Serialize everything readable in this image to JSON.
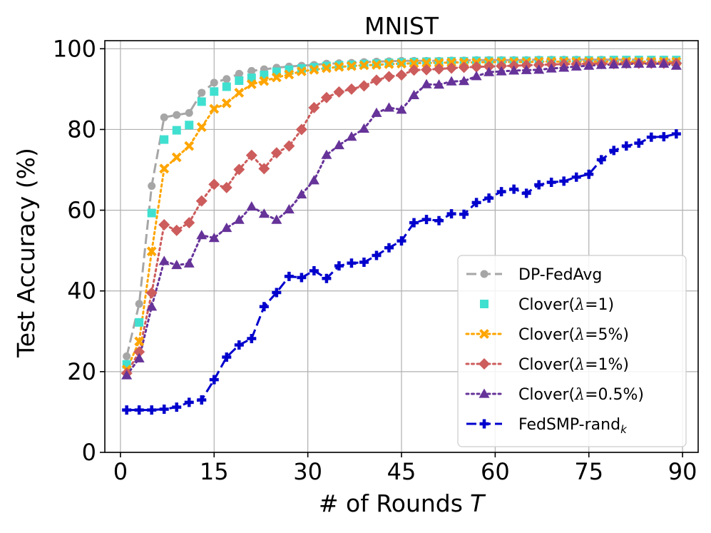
{
  "chart_data": {
    "type": "line",
    "title": "MNIST",
    "xlabel": "# of Rounds",
    "xlabel_var": "T",
    "ylabel": "Test Accuracy (%)",
    "xlim": [
      -2.5,
      92.5
    ],
    "ylim": [
      0,
      102
    ],
    "xticks": [
      0,
      15,
      30,
      45,
      60,
      75,
      90
    ],
    "yticks": [
      0,
      20,
      40,
      60,
      80,
      100
    ],
    "grid": true,
    "legend_position": "lower-right",
    "series": [
      {
        "name": "DP-FedAvg",
        "legend_prefix": "DP-FedAvg",
        "legend_sym": "",
        "legend_suffix": "",
        "legend_sub": "",
        "color": "#a6a6a6",
        "marker": "circle",
        "linestyle": "dashed",
        "draw_line": true,
        "x": [
          1,
          3,
          5,
          7,
          9,
          11,
          13,
          15,
          17,
          19,
          21,
          23,
          25,
          27,
          29,
          31,
          33,
          35,
          37,
          39,
          41,
          43,
          45,
          47,
          49,
          51,
          53,
          55,
          57,
          59,
          61,
          63,
          65,
          67,
          69,
          71,
          73,
          75,
          77,
          79,
          81,
          83,
          85,
          87,
          89
        ],
        "y": [
          23.8,
          36.8,
          66.0,
          83.0,
          83.6,
          84.1,
          89.1,
          91.6,
          92.5,
          93.8,
          94.5,
          94.9,
          95.3,
          95.6,
          95.8,
          96.0,
          96.3,
          96.4,
          96.5,
          96.7,
          96.8,
          96.9,
          97.0,
          97.0,
          97.0,
          97.0,
          97.1,
          97.1,
          97.2,
          97.2,
          97.2,
          97.2,
          97.2,
          97.3,
          97.3,
          97.3,
          97.3,
          97.3,
          97.3,
          97.3,
          97.3,
          97.3,
          97.3,
          97.3,
          97.3
        ]
      },
      {
        "name": "Clover(λ=1)",
        "legend_prefix": "Clover(",
        "legend_sym": "λ",
        "legend_suffix": "=1)",
        "legend_sub": "",
        "color": "#40e0d0",
        "marker": "square",
        "linestyle": "none",
        "draw_line": false,
        "x": [
          1,
          3,
          5,
          7,
          9,
          11,
          13,
          15,
          17,
          19,
          21,
          23,
          25,
          27,
          29,
          31,
          33,
          35,
          37,
          39,
          41,
          43,
          45,
          47,
          49,
          51,
          53,
          55,
          57,
          59,
          61,
          63,
          65,
          67,
          69,
          71,
          73,
          75,
          77,
          79,
          81,
          83,
          85,
          87,
          89
        ],
        "y": [
          21.8,
          32.2,
          59.3,
          77.5,
          79.8,
          81.1,
          86.9,
          89.4,
          90.6,
          92.1,
          92.8,
          93.5,
          94.3,
          94.8,
          95.1,
          95.4,
          95.7,
          95.9,
          96.0,
          96.2,
          96.3,
          96.5,
          96.6,
          96.7,
          96.8,
          96.8,
          96.9,
          96.9,
          97.0,
          97.0,
          97.0,
          97.0,
          97.0,
          97.1,
          97.1,
          97.1,
          97.1,
          97.1,
          97.1,
          97.2,
          97.2,
          97.2,
          97.2,
          97.2,
          97.2
        ]
      },
      {
        "name": "Clover(λ=5%)",
        "legend_prefix": "Clover(",
        "legend_sym": "λ",
        "legend_suffix": "=5%)",
        "legend_sub": "",
        "color": "#ffa500",
        "marker": "x",
        "linestyle": "dotted",
        "draw_line": true,
        "x": [
          1,
          3,
          5,
          7,
          9,
          11,
          13,
          15,
          17,
          19,
          21,
          23,
          25,
          27,
          29,
          31,
          33,
          35,
          37,
          39,
          41,
          43,
          45,
          47,
          49,
          51,
          53,
          55,
          57,
          59,
          61,
          63,
          65,
          67,
          69,
          71,
          73,
          75,
          77,
          79,
          81,
          83,
          85,
          87,
          89
        ],
        "y": [
          20.5,
          27.5,
          49.8,
          70.3,
          73.1,
          75.9,
          80.6,
          85.1,
          86.5,
          89.1,
          91.2,
          92.0,
          92.9,
          93.6,
          94.4,
          94.8,
          95.2,
          95.5,
          95.7,
          95.9,
          96.0,
          96.2,
          96.3,
          96.4,
          96.5,
          96.5,
          96.6,
          96.6,
          96.6,
          96.7,
          96.7,
          96.7,
          96.7,
          96.8,
          96.8,
          96.8,
          96.8,
          96.8,
          96.8,
          96.8,
          96.8,
          96.8,
          96.8,
          96.8,
          96.8
        ]
      },
      {
        "name": "Clover(λ=1%)",
        "legend_prefix": "Clover(",
        "legend_sym": "λ",
        "legend_suffix": "=1%)",
        "legend_sub": "",
        "color": "#cd5c5c",
        "marker": "diamond",
        "linestyle": "dotted",
        "draw_line": true,
        "x": [
          1,
          3,
          5,
          7,
          9,
          11,
          13,
          15,
          17,
          19,
          21,
          23,
          25,
          27,
          29,
          31,
          33,
          35,
          37,
          39,
          41,
          43,
          45,
          47,
          49,
          51,
          53,
          55,
          57,
          59,
          61,
          63,
          65,
          67,
          69,
          71,
          73,
          75,
          77,
          79,
          81,
          83,
          85,
          87,
          89
        ],
        "y": [
          19.6,
          24.9,
          39.5,
          56.4,
          55.0,
          56.9,
          62.3,
          66.4,
          65.6,
          70.1,
          73.6,
          70.3,
          74.2,
          75.9,
          80.0,
          85.4,
          87.9,
          89.3,
          90.0,
          90.8,
          92.2,
          93.1,
          93.5,
          94.7,
          94.8,
          95.0,
          95.2,
          95.4,
          95.5,
          95.6,
          95.7,
          95.8,
          95.9,
          96.0,
          96.1,
          96.2,
          96.2,
          96.3,
          96.3,
          96.3,
          96.4,
          96.4,
          96.4,
          96.4,
          96.4
        ]
      },
      {
        "name": "Clover(λ=0.5%)",
        "legend_prefix": "Clover(",
        "legend_sym": "λ",
        "legend_suffix": "=0.5%)",
        "legend_sub": "",
        "color": "#663399",
        "marker": "triangle",
        "linestyle": "dotted",
        "draw_line": true,
        "x": [
          1,
          3,
          5,
          7,
          9,
          11,
          13,
          15,
          17,
          19,
          21,
          23,
          25,
          27,
          29,
          31,
          33,
          35,
          37,
          39,
          41,
          43,
          45,
          47,
          49,
          51,
          53,
          55,
          57,
          59,
          61,
          63,
          65,
          67,
          69,
          71,
          73,
          75,
          77,
          79,
          81,
          83,
          85,
          87,
          89
        ],
        "y": [
          19.1,
          23.3,
          36.1,
          47.4,
          46.4,
          46.8,
          53.8,
          53.1,
          55.6,
          57.6,
          60.9,
          59.1,
          57.6,
          60.2,
          63.9,
          67.4,
          73.7,
          76.1,
          78.2,
          80.2,
          84.1,
          85.4,
          84.9,
          88.5,
          91.2,
          91.1,
          91.9,
          92.0,
          93.2,
          94.2,
          94.4,
          94.6,
          94.7,
          94.8,
          95.1,
          95.3,
          95.6,
          95.8,
          96.0,
          96.1,
          96.2,
          96.3,
          96.3,
          96.3,
          95.8
        ]
      },
      {
        "name": "FedSMP-rand_k",
        "legend_prefix": "FedSMP-rand",
        "legend_sym": "",
        "legend_suffix": "",
        "legend_sub": "k",
        "color": "#0000cd",
        "marker": "plus",
        "linestyle": "dashed",
        "draw_line": true,
        "x": [
          1,
          3,
          5,
          7,
          9,
          11,
          13,
          15,
          17,
          19,
          21,
          23,
          25,
          27,
          29,
          31,
          33,
          35,
          37,
          39,
          41,
          43,
          45,
          47,
          49,
          51,
          53,
          55,
          57,
          59,
          61,
          63,
          65,
          67,
          69,
          71,
          73,
          75,
          77,
          79,
          81,
          83,
          85,
          87,
          89
        ],
        "y": [
          10.5,
          10.5,
          10.5,
          10.7,
          11.2,
          12.4,
          13.0,
          18.0,
          23.6,
          26.6,
          28.2,
          36.1,
          39.6,
          43.6,
          43.3,
          45.0,
          43.1,
          46.2,
          46.9,
          47.1,
          48.8,
          50.7,
          52.4,
          56.9,
          57.7,
          57.4,
          59.1,
          59.0,
          61.9,
          63.0,
          64.6,
          65.2,
          64.2,
          66.3,
          66.9,
          67.2,
          68.2,
          68.9,
          72.5,
          74.8,
          75.9,
          76.6,
          78.1,
          78.2,
          78.9
        ]
      }
    ]
  }
}
